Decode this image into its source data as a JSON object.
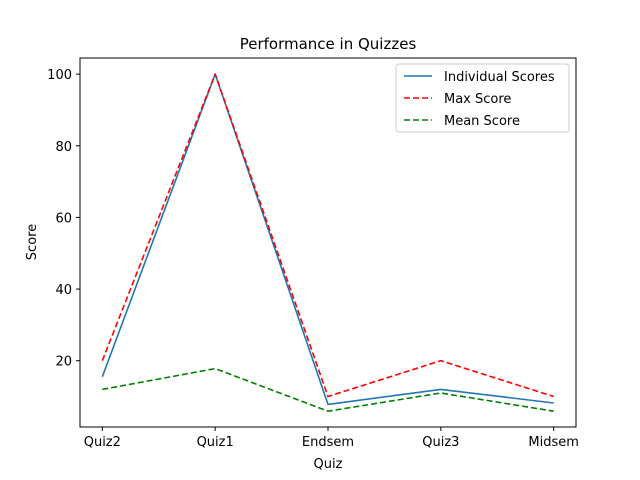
{
  "chart_data": {
    "type": "line",
    "title": "Performance in Quizzes",
    "xlabel": "Quiz",
    "ylabel": "Score",
    "categories": [
      "Quiz2",
      "Quiz1",
      "Endsem",
      "Quiz3",
      "Midsem"
    ],
    "ylim": [
      1.5,
      104.5
    ],
    "yticks": [
      20,
      40,
      60,
      80,
      100
    ],
    "grid": false,
    "legend_position": "top-right",
    "series": [
      {
        "name": "Individual Scores",
        "values": [
          15.5,
          100,
          7.8,
          12,
          8.2
        ],
        "color": "#1f77b4",
        "style": "solid"
      },
      {
        "name": "Max Score",
        "values": [
          20,
          100,
          10,
          20,
          10
        ],
        "color": "#ff0000",
        "style": "dashed"
      },
      {
        "name": "Mean Score",
        "values": [
          12,
          17.8,
          5.9,
          11,
          5.9
        ],
        "color": "#008000",
        "style": "dashed"
      }
    ]
  }
}
